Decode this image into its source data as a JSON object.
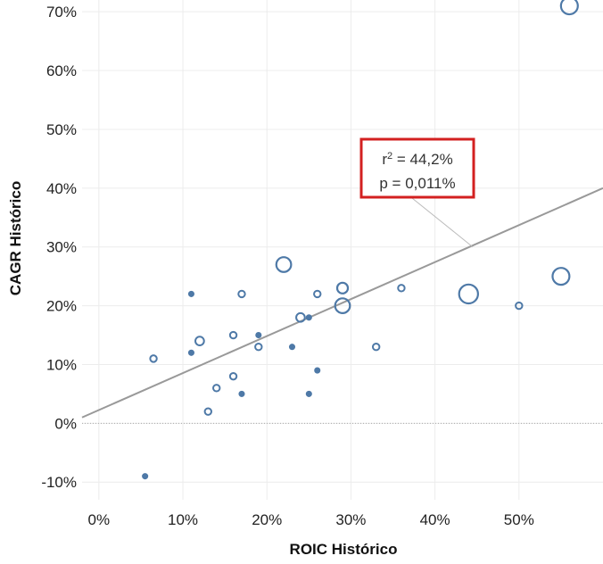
{
  "chart_data": {
    "type": "scatter",
    "xlabel": "ROIC Histórico",
    "ylabel": "CAGR Histórico",
    "xlim": [
      -2,
      60
    ],
    "ylim": [
      -13,
      72
    ],
    "x_ticks": [
      0,
      10,
      20,
      30,
      40,
      50
    ],
    "y_ticks": [
      -10,
      0,
      10,
      20,
      30,
      40,
      50,
      60,
      70
    ],
    "x_tick_labels": [
      "0%",
      "10%",
      "20%",
      "30%",
      "40%",
      "50%"
    ],
    "y_tick_labels": [
      "-10%",
      "0%",
      "10%",
      "20%",
      "30%",
      "40%",
      "50%",
      "60%",
      "70%"
    ],
    "grid": true,
    "zero_reference_line": "dotted",
    "marker_color": "#4e79a7",
    "trend_line": {
      "color": "#999999",
      "points": [
        [
          -2,
          1
        ],
        [
          60,
          40
        ]
      ]
    },
    "annotation": {
      "r2_label": "r",
      "r2_superscript": "2",
      "r2_value": " = 44,2%",
      "p_text": "p = 0,011%",
      "border_color": "#d32020",
      "anchor": [
        44.5,
        30
      ]
    },
    "points": [
      {
        "x": 56,
        "y": 71,
        "size": 7
      },
      {
        "x": 5.5,
        "y": -9,
        "size": 1
      },
      {
        "x": 6.5,
        "y": 11,
        "size": 2
      },
      {
        "x": 11,
        "y": 22,
        "size": 1
      },
      {
        "x": 11,
        "y": 12,
        "size": 1
      },
      {
        "x": 12,
        "y": 14,
        "size": 3
      },
      {
        "x": 13,
        "y": 2,
        "size": 2
      },
      {
        "x": 14,
        "y": 6,
        "size": 2
      },
      {
        "x": 16,
        "y": 15,
        "size": 2
      },
      {
        "x": 16,
        "y": 8,
        "size": 2
      },
      {
        "x": 17,
        "y": 22,
        "size": 2
      },
      {
        "x": 17,
        "y": 5,
        "size": 1
      },
      {
        "x": 19,
        "y": 15,
        "size": 1
      },
      {
        "x": 19,
        "y": 13,
        "size": 2
      },
      {
        "x": 22,
        "y": 27,
        "size": 6
      },
      {
        "x": 23,
        "y": 13,
        "size": 1
      },
      {
        "x": 24,
        "y": 18,
        "size": 3
      },
      {
        "x": 25,
        "y": 18,
        "size": 1
      },
      {
        "x": 25,
        "y": 5,
        "size": 1
      },
      {
        "x": 26,
        "y": 22,
        "size": 2
      },
      {
        "x": 26,
        "y": 9,
        "size": 1
      },
      {
        "x": 29,
        "y": 23,
        "size": 4
      },
      {
        "x": 29,
        "y": 20,
        "size": 6
      },
      {
        "x": 33,
        "y": 13,
        "size": 2
      },
      {
        "x": 36,
        "y": 23,
        "size": 2
      },
      {
        "x": 44,
        "y": 22,
        "size": 8
      },
      {
        "x": 50,
        "y": 20,
        "size": 2
      },
      {
        "x": 55,
        "y": 25,
        "size": 7
      }
    ]
  }
}
